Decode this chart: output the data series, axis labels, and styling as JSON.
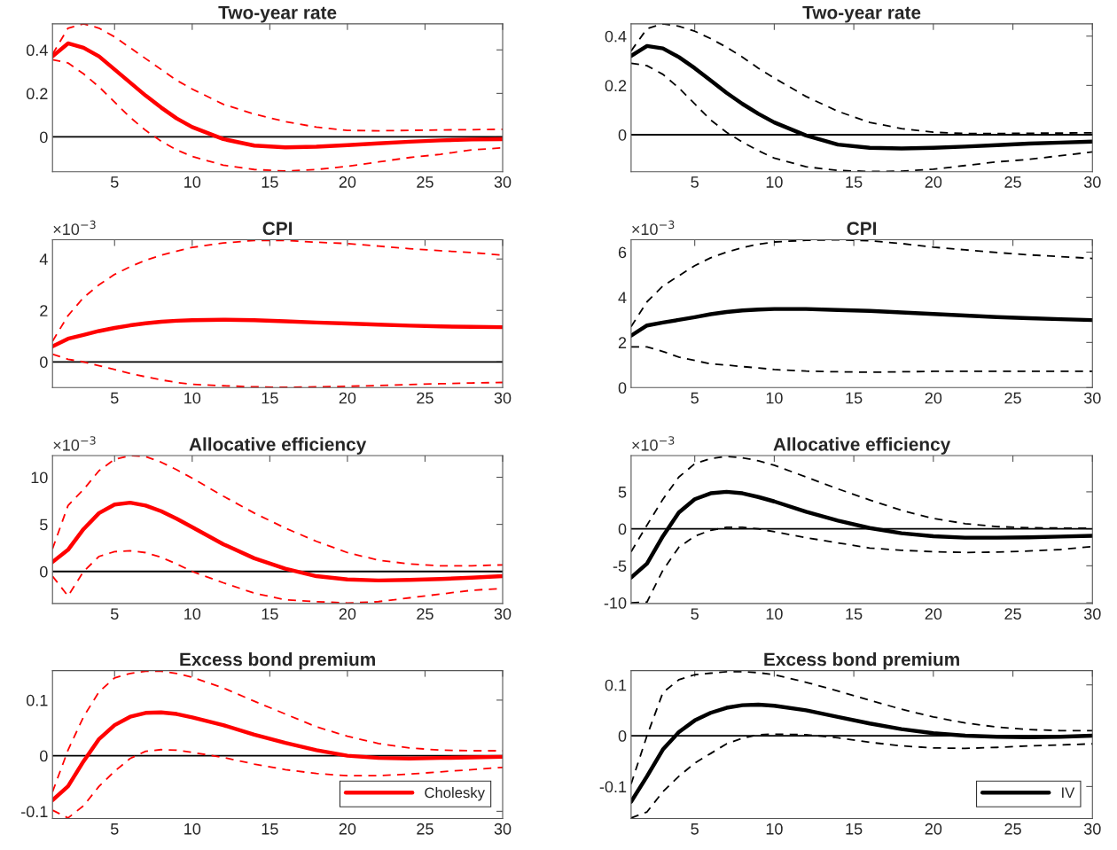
{
  "chart_data": [
    {
      "type": "line",
      "title": "Two-year rate",
      "x": [
        1,
        2,
        3,
        4,
        5,
        6,
        7,
        8,
        9,
        10,
        12,
        14,
        16,
        18,
        20,
        22,
        24,
        26,
        28,
        30
      ],
      "xlim": [
        1,
        30
      ],
      "xticks": [
        5,
        10,
        15,
        20,
        25,
        30
      ],
      "ylim": [
        -0.16,
        0.52
      ],
      "yticks": [
        0,
        0.2,
        0.4
      ],
      "grid": false,
      "ref_lines": [
        {
          "axis": "y",
          "value": 0,
          "color": "#000000",
          "line_style": "solid"
        }
      ],
      "series": [
        {
          "color": "#ff0000",
          "line_style": "solid",
          "values": [
            0.37,
            0.43,
            0.41,
            0.37,
            0.31,
            0.25,
            0.19,
            0.135,
            0.085,
            0.045,
            -0.01,
            -0.04,
            -0.048,
            -0.045,
            -0.038,
            -0.03,
            -0.022,
            -0.016,
            -0.012,
            -0.01
          ]
        },
        {
          "color": "#ff0000",
          "line_style": "dashed",
          "values": [
            0.38,
            0.5,
            0.52,
            0.5,
            0.46,
            0.41,
            0.36,
            0.31,
            0.26,
            0.22,
            0.15,
            0.105,
            0.07,
            0.045,
            0.03,
            0.028,
            0.03,
            0.032,
            0.033,
            0.035
          ]
        },
        {
          "color": "#ff0000",
          "line_style": "dashed",
          "values": [
            0.355,
            0.34,
            0.29,
            0.23,
            0.16,
            0.09,
            0.03,
            -0.02,
            -0.06,
            -0.09,
            -0.13,
            -0.15,
            -0.157,
            -0.15,
            -0.135,
            -0.115,
            -0.095,
            -0.08,
            -0.06,
            -0.05
          ]
        }
      ]
    },
    {
      "type": "line",
      "title": "Two-year rate",
      "x": [
        1,
        2,
        3,
        4,
        5,
        6,
        7,
        8,
        9,
        10,
        12,
        14,
        16,
        18,
        20,
        22,
        24,
        26,
        28,
        30
      ],
      "xlim": [
        1,
        30
      ],
      "xticks": [
        5,
        10,
        15,
        20,
        25,
        30
      ],
      "ylim": [
        -0.15,
        0.45
      ],
      "yticks": [
        0,
        0.2,
        0.4
      ],
      "grid": false,
      "ref_lines": [
        {
          "axis": "y",
          "value": 0,
          "color": "#000000",
          "line_style": "solid"
        }
      ],
      "series": [
        {
          "color": "#000000",
          "line_style": "solid",
          "values": [
            0.32,
            0.36,
            0.35,
            0.315,
            0.27,
            0.22,
            0.17,
            0.125,
            0.085,
            0.05,
            -0.003,
            -0.04,
            -0.053,
            -0.056,
            -0.053,
            -0.048,
            -0.042,
            -0.036,
            -0.032,
            -0.028
          ]
        },
        {
          "color": "#000000",
          "line_style": "dashed",
          "values": [
            0.34,
            0.43,
            0.45,
            0.44,
            0.42,
            0.39,
            0.355,
            0.315,
            0.27,
            0.23,
            0.155,
            0.095,
            0.05,
            0.025,
            0.01,
            0.005,
            0.005,
            0.006,
            0.007,
            0.008
          ]
        },
        {
          "color": "#000000",
          "line_style": "dashed",
          "values": [
            0.29,
            0.28,
            0.245,
            0.19,
            0.125,
            0.06,
            0.01,
            -0.03,
            -0.065,
            -0.095,
            -0.13,
            -0.145,
            -0.149,
            -0.148,
            -0.14,
            -0.125,
            -0.11,
            -0.1,
            -0.085,
            -0.07
          ]
        }
      ]
    },
    {
      "type": "line",
      "title": "CPI",
      "annotations": [
        "×10$^{−3}$"
      ],
      "x": [
        1,
        2,
        3,
        4,
        5,
        6,
        7,
        8,
        9,
        10,
        12,
        14,
        16,
        18,
        20,
        22,
        24,
        26,
        28,
        30
      ],
      "xlim": [
        1,
        30
      ],
      "xticks": [
        5,
        10,
        15,
        20,
        25,
        30
      ],
      "ylim": [
        -1,
        4.75
      ],
      "yticks": [
        0,
        2,
        4
      ],
      "grid": false,
      "ref_lines": [
        {
          "axis": "y",
          "value": 0,
          "color": "#000000",
          "line_style": "solid"
        }
      ],
      "series": [
        {
          "color": "#ff0000",
          "line_style": "solid",
          "values": [
            0.6,
            0.9,
            1.05,
            1.2,
            1.32,
            1.42,
            1.5,
            1.56,
            1.6,
            1.62,
            1.64,
            1.62,
            1.58,
            1.53,
            1.49,
            1.45,
            1.41,
            1.38,
            1.36,
            1.35
          ]
        },
        {
          "color": "#ff0000",
          "line_style": "dashed",
          "values": [
            0.8,
            1.8,
            2.5,
            3.0,
            3.4,
            3.7,
            3.95,
            4.15,
            4.3,
            4.45,
            4.62,
            4.72,
            4.72,
            4.65,
            4.6,
            4.5,
            4.4,
            4.32,
            4.25,
            4.15
          ]
        },
        {
          "color": "#ff0000",
          "line_style": "dashed",
          "values": [
            0.3,
            0.1,
            0.0,
            -0.15,
            -0.3,
            -0.45,
            -0.58,
            -0.7,
            -0.8,
            -0.87,
            -0.93,
            -0.97,
            -0.99,
            -0.97,
            -0.95,
            -0.92,
            -0.88,
            -0.85,
            -0.82,
            -0.8
          ]
        }
      ]
    },
    {
      "type": "line",
      "title": "CPI",
      "annotations": [
        "×10$^{−3}$"
      ],
      "x": [
        1,
        2,
        3,
        4,
        5,
        6,
        7,
        8,
        9,
        10,
        12,
        14,
        16,
        18,
        20,
        22,
        24,
        26,
        28,
        30
      ],
      "xlim": [
        1,
        30
      ],
      "xticks": [
        5,
        10,
        15,
        20,
        25,
        30
      ],
      "ylim": [
        0,
        6.55
      ],
      "yticks": [
        0,
        2,
        4,
        6
      ],
      "grid": false,
      "series": [
        {
          "color": "#000000",
          "line_style": "solid",
          "values": [
            2.3,
            2.75,
            2.88,
            3.0,
            3.12,
            3.25,
            3.35,
            3.42,
            3.46,
            3.48,
            3.48,
            3.44,
            3.4,
            3.33,
            3.26,
            3.19,
            3.12,
            3.07,
            3.03,
            2.99
          ]
        },
        {
          "color": "#000000",
          "line_style": "dashed",
          "values": [
            2.7,
            3.8,
            4.5,
            4.95,
            5.4,
            5.75,
            6.0,
            6.2,
            6.35,
            6.45,
            6.52,
            6.55,
            6.5,
            6.38,
            6.22,
            6.1,
            5.98,
            5.88,
            5.8,
            5.72
          ]
        },
        {
          "color": "#000000",
          "line_style": "dashed",
          "values": [
            1.8,
            1.8,
            1.6,
            1.35,
            1.2,
            1.05,
            1.0,
            0.93,
            0.87,
            0.8,
            0.73,
            0.7,
            0.68,
            0.7,
            0.72,
            0.72,
            0.72,
            0.72,
            0.72,
            0.72
          ]
        }
      ]
    },
    {
      "type": "line",
      "title": "Allocative efficiency",
      "annotations": [
        "×10$^{−3}$"
      ],
      "x": [
        1,
        2,
        3,
        4,
        5,
        6,
        7,
        8,
        9,
        10,
        12,
        14,
        16,
        18,
        20,
        22,
        24,
        26,
        28,
        30
      ],
      "xlim": [
        1,
        30
      ],
      "xticks": [
        5,
        10,
        15,
        20,
        25,
        30
      ],
      "ylim": [
        -3.4,
        12.3
      ],
      "yticks": [
        0,
        5,
        10
      ],
      "grid": false,
      "ref_lines": [
        {
          "axis": "y",
          "value": 0,
          "color": "#000000",
          "line_style": "solid"
        }
      ],
      "series": [
        {
          "color": "#ff0000",
          "line_style": "solid",
          "values": [
            1.0,
            2.3,
            4.5,
            6.2,
            7.1,
            7.3,
            7.0,
            6.4,
            5.6,
            4.7,
            2.9,
            1.4,
            0.3,
            -0.5,
            -0.85,
            -0.95,
            -0.9,
            -0.8,
            -0.65,
            -0.5
          ]
        },
        {
          "color": "#ff0000",
          "line_style": "dashed",
          "values": [
            2.4,
            7.0,
            8.7,
            10.7,
            11.9,
            12.3,
            12.2,
            11.6,
            10.8,
            9.9,
            8.0,
            6.2,
            4.6,
            3.2,
            2.0,
            1.2,
            0.8,
            0.6,
            0.6,
            0.7
          ]
        },
        {
          "color": "#ff0000",
          "line_style": "dashed",
          "values": [
            -0.5,
            -2.6,
            0.0,
            1.6,
            2.1,
            2.2,
            2.0,
            1.5,
            0.8,
            0.0,
            -1.2,
            -2.3,
            -3.0,
            -3.2,
            -3.35,
            -3.2,
            -2.8,
            -2.4,
            -2.0,
            -1.8
          ]
        }
      ]
    },
    {
      "type": "line",
      "title": "Allocative efficiency",
      "annotations": [
        "×10$^{−3}$"
      ],
      "x": [
        1,
        2,
        3,
        4,
        5,
        6,
        7,
        8,
        9,
        10,
        12,
        14,
        16,
        18,
        20,
        22,
        24,
        26,
        28,
        30
      ],
      "xlim": [
        1,
        30
      ],
      "xticks": [
        5,
        10,
        15,
        20,
        25,
        30
      ],
      "ylim": [
        -10.1,
        9.9
      ],
      "yticks": [
        -10,
        -5,
        0,
        5
      ],
      "grid": false,
      "ref_lines": [
        {
          "axis": "y",
          "value": 0,
          "color": "#000000",
          "line_style": "solid"
        }
      ],
      "series": [
        {
          "color": "#000000",
          "line_style": "solid",
          "values": [
            -6.6,
            -4.7,
            -1.0,
            2.2,
            4.0,
            4.8,
            5.0,
            4.8,
            4.3,
            3.7,
            2.3,
            1.1,
            0.1,
            -0.6,
            -1.0,
            -1.2,
            -1.2,
            -1.15,
            -1.05,
            -0.95
          ]
        },
        {
          "color": "#000000",
          "line_style": "dashed",
          "values": [
            -3.1,
            0.5,
            4.0,
            7.0,
            8.8,
            9.5,
            9.8,
            9.6,
            9.2,
            8.6,
            7.0,
            5.4,
            3.9,
            2.5,
            1.4,
            0.7,
            0.3,
            0.15,
            0.1,
            0.1
          ]
        },
        {
          "color": "#000000",
          "line_style": "dashed",
          "values": [
            -10.0,
            -9.9,
            -5.6,
            -2.5,
            -1.0,
            -0.2,
            0.2,
            0.2,
            0.0,
            -0.4,
            -1.2,
            -1.9,
            -2.6,
            -2.9,
            -3.1,
            -3.2,
            -3.15,
            -3.0,
            -2.8,
            -2.4
          ]
        }
      ]
    },
    {
      "type": "line",
      "title": "Excess bond premium",
      "x": [
        1,
        2,
        3,
        4,
        5,
        6,
        7,
        8,
        9,
        10,
        12,
        14,
        16,
        18,
        20,
        22,
        24,
        26,
        28,
        30
      ],
      "xlim": [
        1,
        30
      ],
      "xticks": [
        5,
        10,
        15,
        20,
        25,
        30
      ],
      "ylim": [
        -0.113,
        0.153
      ],
      "yticks": [
        -0.1,
        0,
        0.1
      ],
      "grid": false,
      "legend": "bottom right",
      "ref_lines": [
        {
          "axis": "y",
          "value": 0,
          "color": "#000000",
          "line_style": "solid"
        }
      ],
      "series": [
        {
          "name": "Cholesky",
          "color": "#ff0000",
          "line_style": "solid",
          "values": [
            -0.08,
            -0.055,
            -0.01,
            0.03,
            0.055,
            0.07,
            0.077,
            0.078,
            0.075,
            0.069,
            0.055,
            0.038,
            0.023,
            0.01,
            0.0,
            -0.004,
            -0.005,
            -0.004,
            -0.003,
            -0.002
          ]
        },
        {
          "color": "#ff0000",
          "line_style": "dashed",
          "values": [
            -0.065,
            0.01,
            0.07,
            0.115,
            0.14,
            0.148,
            0.152,
            0.152,
            0.148,
            0.141,
            0.122,
            0.098,
            0.075,
            0.052,
            0.035,
            0.022,
            0.014,
            0.01,
            0.009,
            0.009
          ]
        },
        {
          "color": "#ff0000",
          "line_style": "dashed",
          "values": [
            -0.098,
            -0.112,
            -0.09,
            -0.055,
            -0.028,
            -0.005,
            0.008,
            0.011,
            0.01,
            0.006,
            -0.003,
            -0.015,
            -0.025,
            -0.032,
            -0.036,
            -0.036,
            -0.033,
            -0.029,
            -0.025,
            -0.021
          ]
        }
      ]
    },
    {
      "type": "line",
      "title": "Excess bond premium",
      "x": [
        1,
        2,
        3,
        4,
        5,
        6,
        7,
        8,
        9,
        10,
        12,
        14,
        16,
        18,
        20,
        22,
        24,
        26,
        28,
        30
      ],
      "xlim": [
        1,
        30
      ],
      "xticks": [
        5,
        10,
        15,
        20,
        25,
        30
      ],
      "ylim": [
        -0.163,
        0.128
      ],
      "yticks": [
        -0.1,
        0,
        0.1
      ],
      "grid": false,
      "legend": "bottom right",
      "ref_lines": [
        {
          "axis": "y",
          "value": 0,
          "color": "#000000",
          "line_style": "solid"
        }
      ],
      "series": [
        {
          "name": "IV",
          "color": "#000000",
          "line_style": "solid",
          "values": [
            -0.13,
            -0.08,
            -0.027,
            0.007,
            0.03,
            0.045,
            0.055,
            0.06,
            0.061,
            0.059,
            0.05,
            0.037,
            0.024,
            0.013,
            0.005,
            0.0,
            -0.002,
            -0.003,
            -0.002,
            0.0
          ]
        },
        {
          "color": "#000000",
          "line_style": "dashed",
          "values": [
            -0.095,
            0.0,
            0.085,
            0.11,
            0.12,
            0.123,
            0.126,
            0.126,
            0.124,
            0.12,
            0.105,
            0.088,
            0.07,
            0.052,
            0.037,
            0.025,
            0.017,
            0.012,
            0.01,
            0.01
          ]
        },
        {
          "color": "#000000",
          "line_style": "dashed",
          "values": [
            -0.162,
            -0.15,
            -0.11,
            -0.08,
            -0.054,
            -0.035,
            -0.016,
            -0.005,
            0.002,
            0.003,
            0.002,
            -0.004,
            -0.013,
            -0.02,
            -0.024,
            -0.025,
            -0.023,
            -0.02,
            -0.018,
            -0.016
          ]
        }
      ]
    }
  ]
}
